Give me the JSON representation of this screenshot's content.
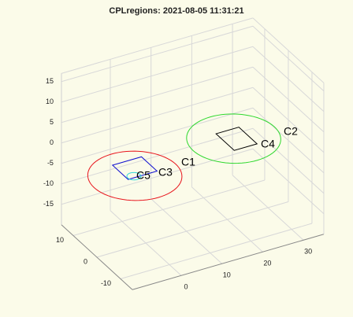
{
  "chart_data": {
    "type": "region3d",
    "title": "CPLregions: 2021-08-05 11:31:21",
    "xlim": [
      -12,
      35
    ],
    "ylim": [
      -15,
      15
    ],
    "zlim": [
      -20,
      17
    ],
    "xticks": [
      0,
      10,
      20,
      30
    ],
    "yticks": [
      -10,
      0,
      10
    ],
    "zticks": [
      -15,
      -10,
      -5,
      0,
      5,
      10,
      15
    ],
    "grid": true,
    "series": [
      {
        "name": "C1",
        "color": "#e8141c",
        "center": [
          -5,
          -4,
          0
        ],
        "radius": 10
      },
      {
        "name": "C2",
        "color": "#2ed82e",
        "center": [
          21,
          -1,
          0
        ],
        "radius": 10
      },
      {
        "name": "C3",
        "color": "#1010d0",
        "vertices": [
          [
            -7,
            2,
            0
          ],
          [
            0.1,
            2,
            0
          ],
          [
            0.1,
            -4.6,
            0
          ],
          [
            -7,
            -4.6,
            0
          ]
        ]
      },
      {
        "name": "C4",
        "color": "#000000",
        "vertices": [
          [
            18.7,
            2.5,
            0
          ],
          [
            24.3,
            2.5,
            0
          ],
          [
            24.3,
            -5.2,
            0
          ],
          [
            18.7,
            -5.2,
            0
          ]
        ]
      },
      {
        "name": "C5",
        "color": "#30d8d8",
        "center": [
          -5.25,
          -4.05,
          0
        ],
        "radius": 1.5
      }
    ]
  }
}
